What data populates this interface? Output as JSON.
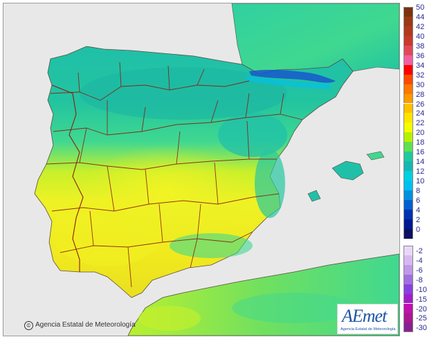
{
  "credit": {
    "text": "Agencia Estatal de Meteorología",
    "copyright_symbol": "©"
  },
  "logo": {
    "word": "AEmet",
    "subtitle": "Agencia Estatal de Meteorología"
  },
  "legend": {
    "positive": [
      {
        "label": "50",
        "color": "#7a3310"
      },
      {
        "label": "44",
        "color": "#9a3a14"
      },
      {
        "label": "42",
        "color": "#b03a1e"
      },
      {
        "label": "40",
        "color": "#c83a2a"
      },
      {
        "label": "38",
        "color": "#e0485a"
      },
      {
        "label": "36",
        "color": "#f060a0"
      },
      {
        "label": "34",
        "color": "#ff0000"
      },
      {
        "label": "32",
        "color": "#ff4a00"
      },
      {
        "label": "30",
        "color": "#ff7800"
      },
      {
        "label": "28",
        "color": "#ff9a00"
      },
      {
        "label": "26",
        "color": "#ffc000"
      },
      {
        "label": "24",
        "color": "#ffe400"
      },
      {
        "label": "22",
        "color": "#f2ff00"
      },
      {
        "label": "20",
        "color": "#b8f000"
      },
      {
        "label": "18",
        "color": "#60e050"
      },
      {
        "label": "16",
        "color": "#20c8a0"
      },
      {
        "label": "14",
        "color": "#18b8b0"
      },
      {
        "label": "12",
        "color": "#00d0e0"
      },
      {
        "label": "10",
        "color": "#00c0f0"
      },
      {
        "label": "8",
        "color": "#0090e0"
      },
      {
        "label": "6",
        "color": "#0060d0"
      },
      {
        "label": "4",
        "color": "#0030b0"
      },
      {
        "label": "2",
        "color": "#001890"
      },
      {
        "label": "0",
        "color": "#0c1060"
      }
    ],
    "negative": [
      {
        "label": "-2",
        "color": "#e8d8f8"
      },
      {
        "label": "-4",
        "color": "#d8b8f0"
      },
      {
        "label": "-6",
        "color": "#c098e8"
      },
      {
        "label": "-8",
        "color": "#a070e0"
      },
      {
        "label": "-10",
        "color": "#8a40e0"
      },
      {
        "label": "-15",
        "color": "#a020c8"
      },
      {
        "label": "-20",
        "color": "#c010b0"
      },
      {
        "label": "-25",
        "color": "#a81890"
      },
      {
        "label": "-30",
        "color": "#8a2090"
      }
    ]
  },
  "map": {
    "sea_color": "#e8e8e8",
    "land_colors": {
      "north_teal": "#20c0a8",
      "north_deep_teal": "#18b09a",
      "mid_green": "#40d890",
      "south_yellow": "#e8f028",
      "lime": "#b8ee30",
      "pyrenees_blue": "#1850d0",
      "coast_green": "#60e060",
      "border_brown": "#8a1c10",
      "coast_line": "#5a4a40"
    }
  }
}
